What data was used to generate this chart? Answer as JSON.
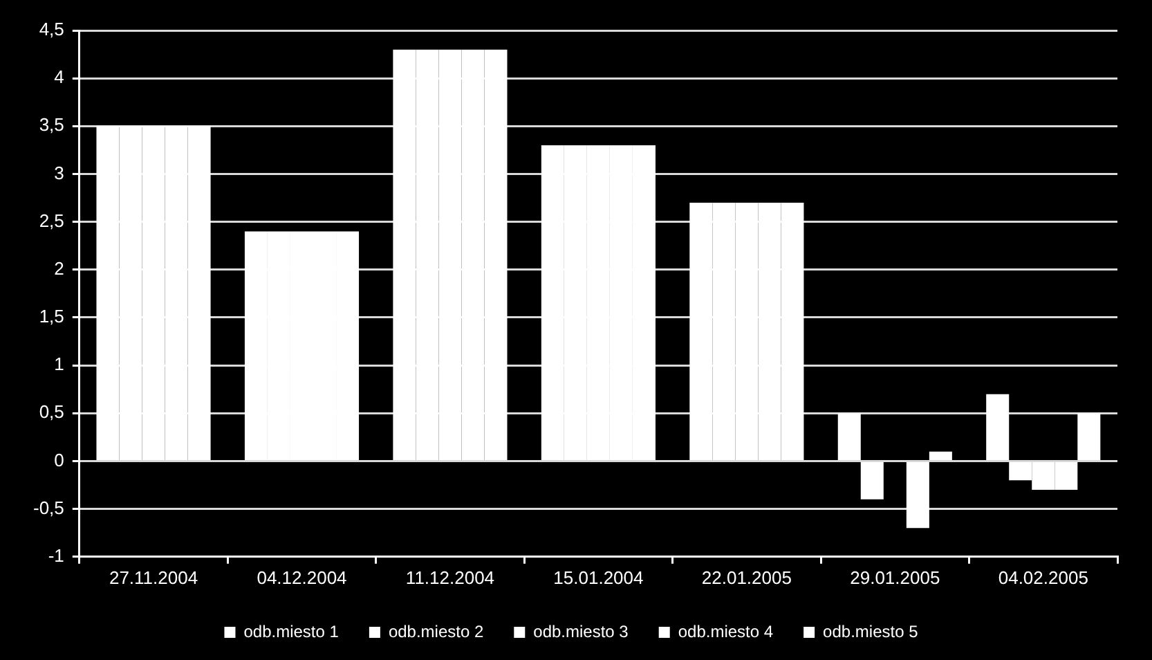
{
  "chart_data": {
    "type": "bar",
    "categories": [
      "27.11.2004",
      "04.12.2004",
      "11.12.2004",
      "15.01.2004",
      "22.01.2005",
      "29.01.2005",
      "04.02.2005"
    ],
    "series": [
      {
        "name": "odb.miesto 1",
        "color": "#ffffff",
        "values": [
          3.5,
          2.4,
          4.3,
          3.3,
          2.7,
          0.5,
          0.7
        ]
      },
      {
        "name": "odb.miesto 2",
        "color": "#ffffff",
        "values": [
          3.5,
          2.4,
          4.3,
          3.3,
          2.7,
          -0.4,
          -0.2
        ]
      },
      {
        "name": "odb.miesto 3",
        "color": "#ffffff",
        "values": [
          3.5,
          2.4,
          4.3,
          3.3,
          2.7,
          null,
          -0.3
        ]
      },
      {
        "name": "odb.miesto 4",
        "color": "#ffffff",
        "values": [
          3.5,
          2.4,
          4.3,
          3.3,
          2.7,
          -0.7,
          -0.3
        ]
      },
      {
        "name": "odb.miesto 5",
        "color": "#ffffff",
        "values": [
          3.5,
          2.4,
          4.3,
          3.3,
          2.7,
          0.1,
          0.5
        ]
      }
    ],
    "ylim": [
      -1,
      4.5
    ],
    "yticks": [
      -1,
      {
        "value": -0.5,
        "label": "-0,5"
      },
      0,
      {
        "value": 0.5,
        "label": "0,5"
      },
      1,
      {
        "value": 1.5,
        "label": "1,5"
      },
      2,
      {
        "value": 2.5,
        "label": "2,5"
      },
      3,
      {
        "value": 3.5,
        "label": "3,5"
      },
      4,
      {
        "value": 4.5,
        "label": "4,5"
      }
    ],
    "grid": "y",
    "legend": "bottom"
  }
}
